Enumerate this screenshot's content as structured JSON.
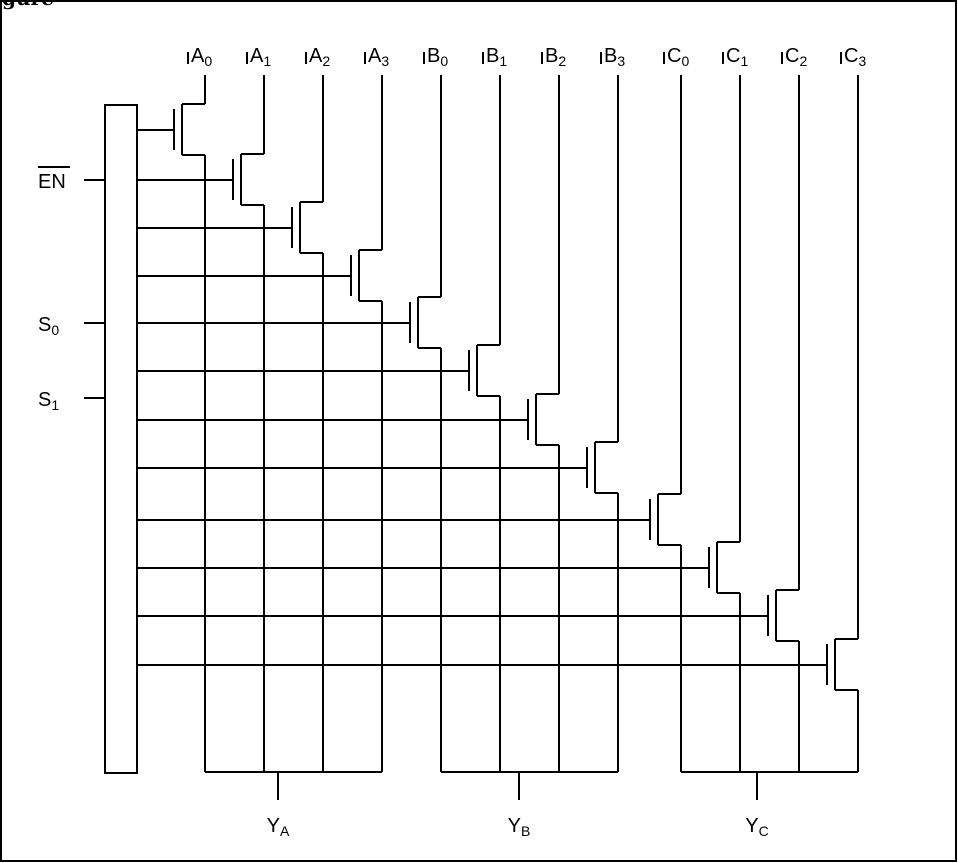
{
  "caption": "gure",
  "input_signals": [
    {
      "base": "EN",
      "sub": "",
      "overbar": true
    },
    {
      "base": "S",
      "sub": "0",
      "overbar": false
    },
    {
      "base": "S",
      "sub": "1",
      "overbar": false
    }
  ],
  "data_inputs": [
    {
      "base": "A",
      "sub": "0"
    },
    {
      "base": "A",
      "sub": "1"
    },
    {
      "base": "A",
      "sub": "2"
    },
    {
      "base": "A",
      "sub": "3"
    },
    {
      "base": "B",
      "sub": "0"
    },
    {
      "base": "B",
      "sub": "1"
    },
    {
      "base": "B",
      "sub": "2"
    },
    {
      "base": "B",
      "sub": "3"
    },
    {
      "base": "C",
      "sub": "0"
    },
    {
      "base": "C",
      "sub": "1"
    },
    {
      "base": "C",
      "sub": "2"
    },
    {
      "base": "C",
      "sub": "3"
    }
  ],
  "outputs": [
    {
      "base": "Y",
      "sub": "A"
    },
    {
      "base": "Y",
      "sub": "B"
    },
    {
      "base": "Y",
      "sub": "C"
    }
  ]
}
